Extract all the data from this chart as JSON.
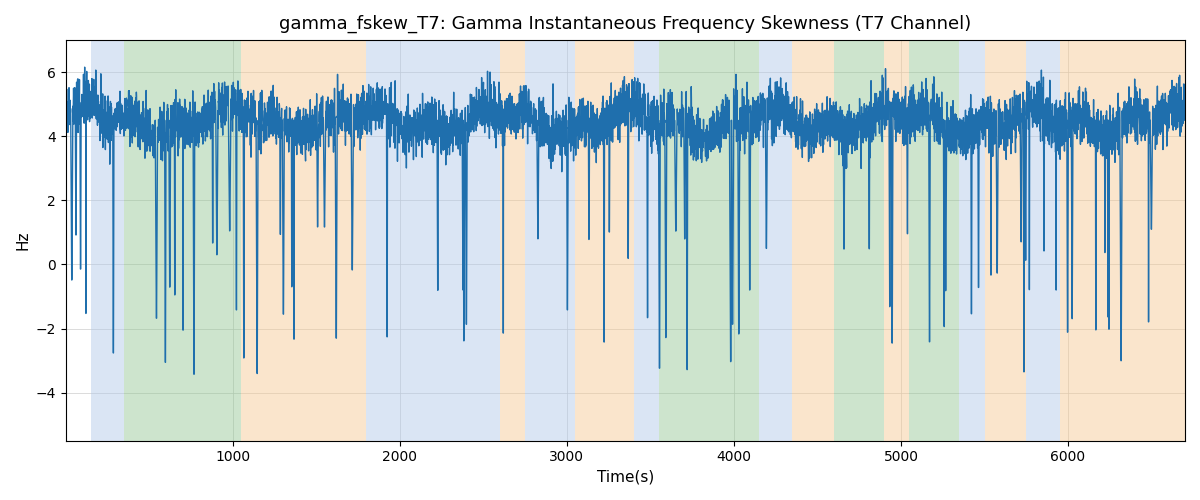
{
  "title": "gamma_fskew_T7: Gamma Instantaneous Frequency Skewness (T7 Channel)",
  "xlabel": "Time(s)",
  "ylabel": "Hz",
  "xlim": [
    0,
    6700
  ],
  "ylim": [
    -5.5,
    7
  ],
  "yticks": [
    -4,
    -2,
    0,
    2,
    4,
    6
  ],
  "xticks": [
    1000,
    2000,
    3000,
    4000,
    5000,
    6000
  ],
  "line_color": "#1f6fad",
  "line_width": 1.0,
  "background_color": "#ffffff",
  "grid_color": "#cccccc",
  "title_fontsize": 13,
  "label_fontsize": 11,
  "seed": 42,
  "n_points": 6650,
  "base_mean": 4.5,
  "noise_std": 0.4,
  "spike_probability": 0.012,
  "spike_depth_min": -8,
  "spike_depth_max": -3,
  "bands": [
    {
      "start": 150,
      "end": 350,
      "color": "#aec6e8",
      "alpha": 0.45
    },
    {
      "start": 350,
      "end": 1050,
      "color": "#90c490",
      "alpha": 0.45
    },
    {
      "start": 1050,
      "end": 1800,
      "color": "#f5c78e",
      "alpha": 0.45
    },
    {
      "start": 1800,
      "end": 2600,
      "color": "#aec6e8",
      "alpha": 0.45
    },
    {
      "start": 2600,
      "end": 2750,
      "color": "#f5c78e",
      "alpha": 0.45
    },
    {
      "start": 2750,
      "end": 3050,
      "color": "#aec6e8",
      "alpha": 0.45
    },
    {
      "start": 3050,
      "end": 3400,
      "color": "#f5c78e",
      "alpha": 0.45
    },
    {
      "start": 3400,
      "end": 3550,
      "color": "#aec6e8",
      "alpha": 0.45
    },
    {
      "start": 3550,
      "end": 4150,
      "color": "#90c490",
      "alpha": 0.45
    },
    {
      "start": 4150,
      "end": 4350,
      "color": "#aec6e8",
      "alpha": 0.45
    },
    {
      "start": 4350,
      "end": 4600,
      "color": "#f5c78e",
      "alpha": 0.45
    },
    {
      "start": 4600,
      "end": 4900,
      "color": "#90c490",
      "alpha": 0.45
    },
    {
      "start": 4900,
      "end": 5050,
      "color": "#f5c78e",
      "alpha": 0.45
    },
    {
      "start": 5050,
      "end": 5350,
      "color": "#90c490",
      "alpha": 0.45
    },
    {
      "start": 5350,
      "end": 5500,
      "color": "#aec6e8",
      "alpha": 0.45
    },
    {
      "start": 5500,
      "end": 5750,
      "color": "#f5c78e",
      "alpha": 0.45
    },
    {
      "start": 5750,
      "end": 5950,
      "color": "#aec6e8",
      "alpha": 0.45
    },
    {
      "start": 5950,
      "end": 6700,
      "color": "#f5c78e",
      "alpha": 0.45
    }
  ]
}
